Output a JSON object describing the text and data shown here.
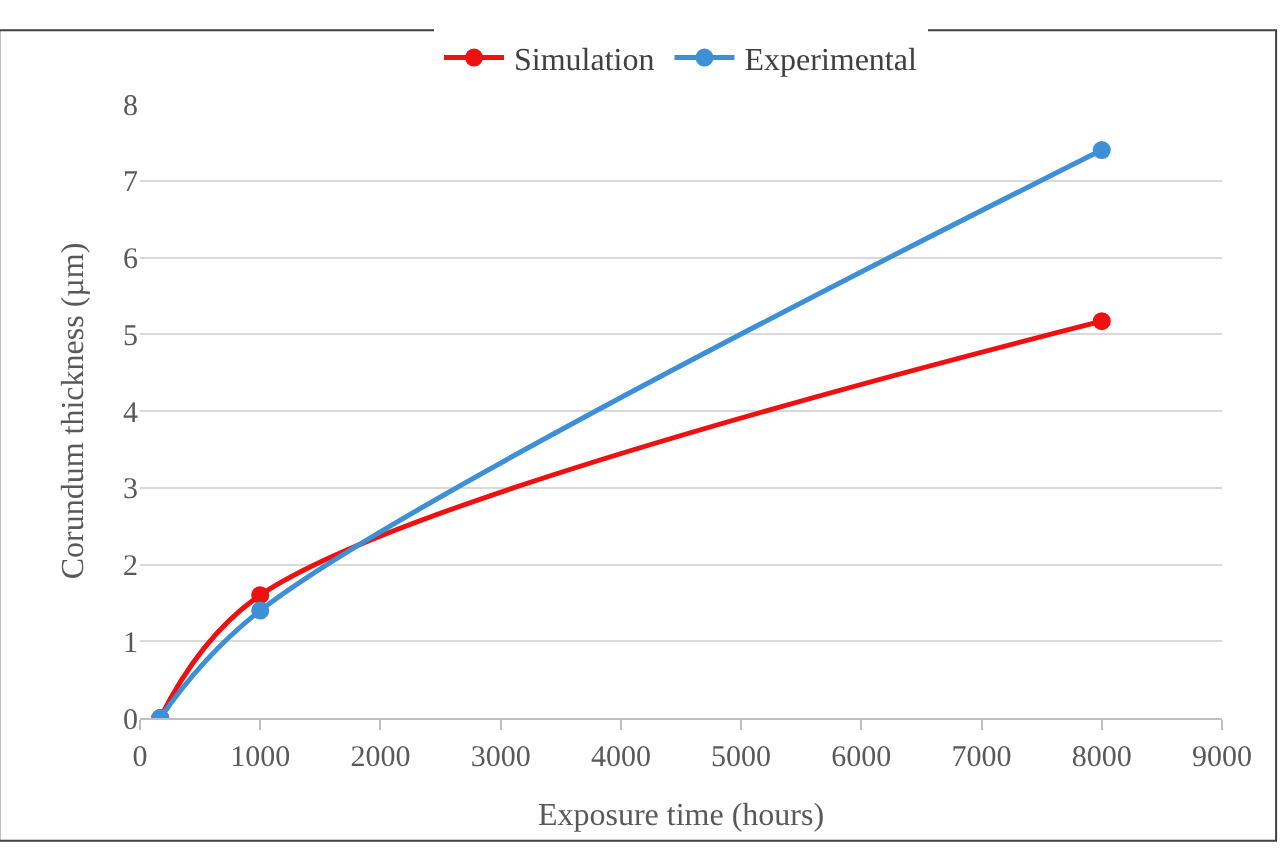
{
  "chart_data": {
    "type": "line",
    "xlabel": "Exposure time (hours)",
    "ylabel": "Corundum thickness (µm)",
    "series": [
      {
        "name": "Simulation",
        "color": "#ee1111",
        "x": [
          168,
          1000,
          8000
        ],
        "values": [
          0,
          1.6,
          5.17
        ]
      },
      {
        "name": "Experimental",
        "color": "#3d8fd6",
        "x": [
          168,
          1000,
          8000
        ],
        "values": [
          0,
          1.4,
          7.4
        ]
      }
    ],
    "xlim": [
      0,
      9000
    ],
    "xticks": [
      0,
      1000,
      2000,
      3000,
      4000,
      5000,
      6000,
      7000,
      8000,
      9000
    ],
    "ylim": [
      0,
      8
    ],
    "yticks": [
      0,
      1,
      2,
      3,
      4,
      5,
      6,
      7,
      8
    ],
    "grid": "y",
    "legend": "top",
    "marker": "circle",
    "line_style": "solid"
  }
}
